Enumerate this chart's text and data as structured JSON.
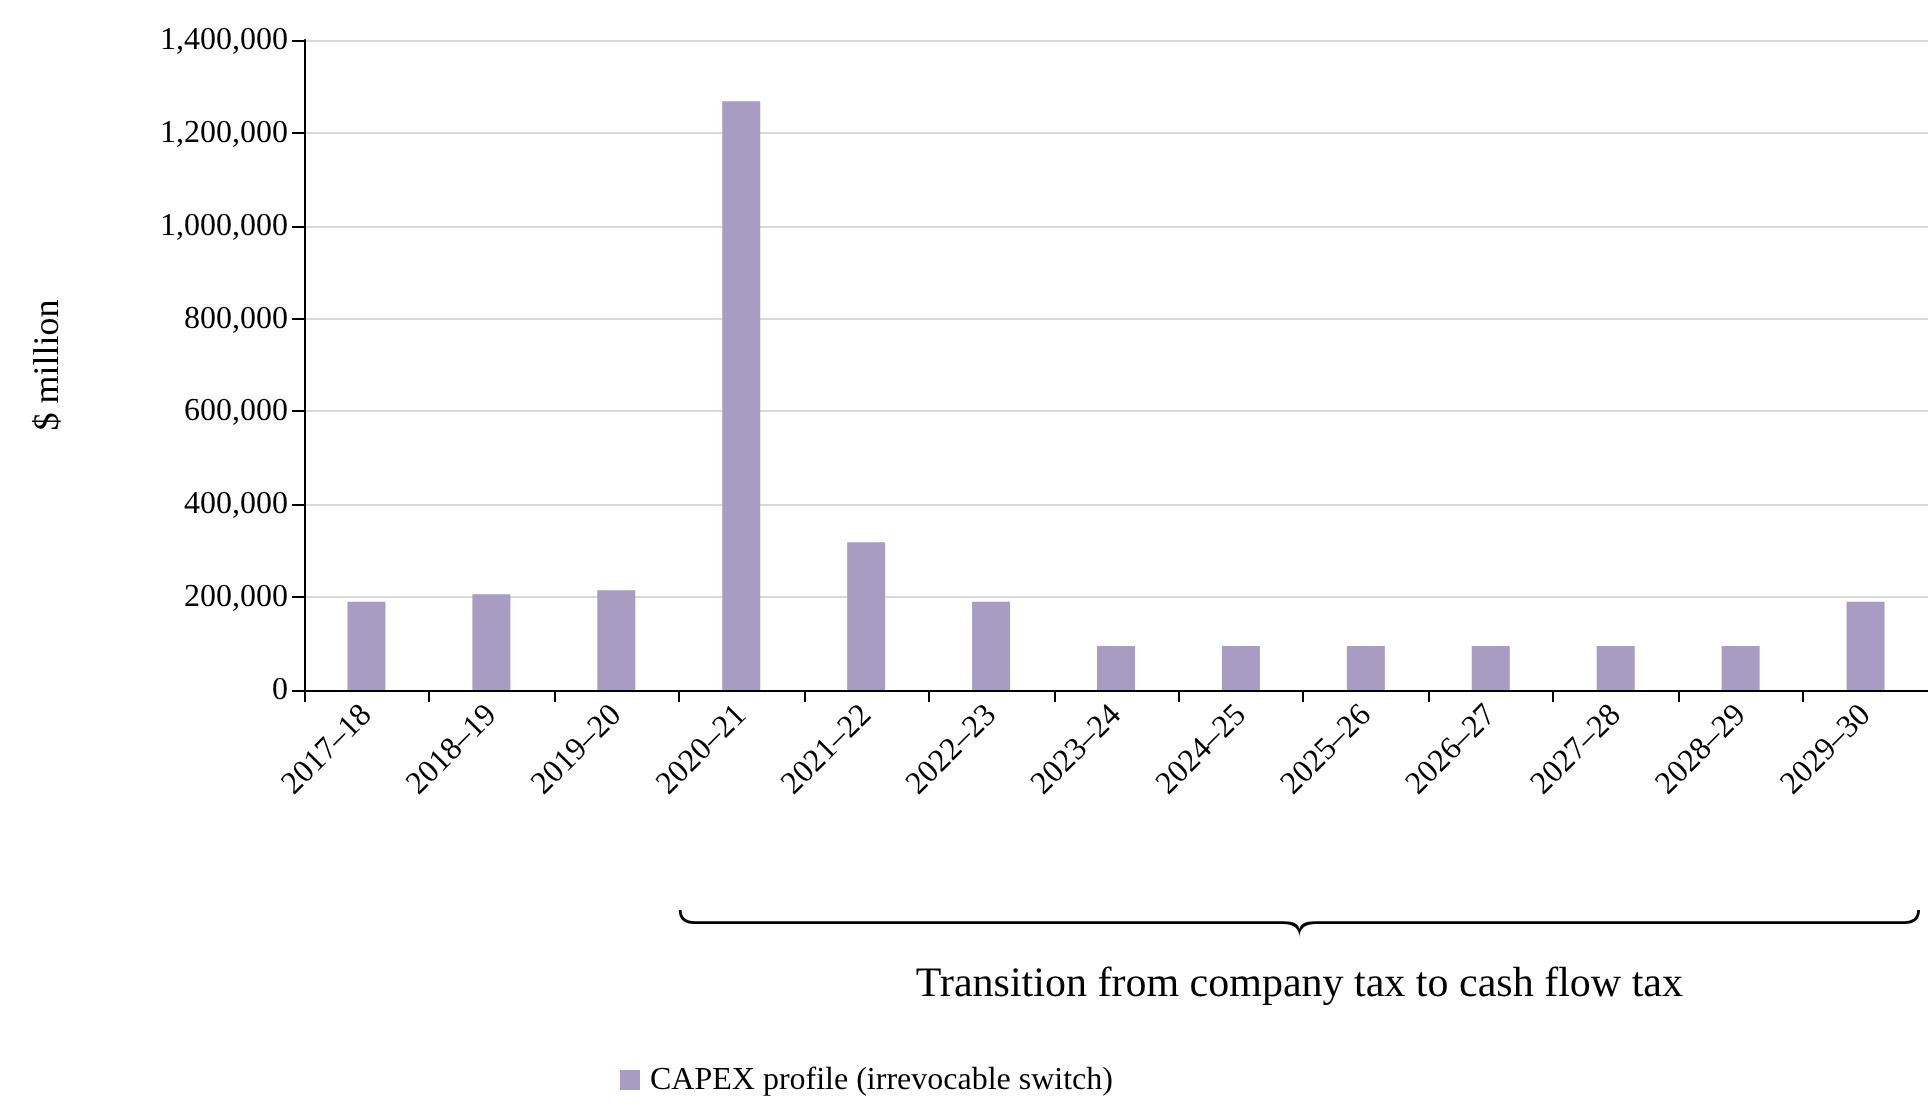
{
  "chart_data": {
    "type": "bar",
    "ylabel": "$ million",
    "categories": [
      "2017–18",
      "2018–19",
      "2019–20",
      "2020–21",
      "2021–22",
      "2022–23",
      "2023–24",
      "2024–25",
      "2025–26",
      "2026–27",
      "2027–28",
      "2028–29",
      "2029–30"
    ],
    "series": [
      {
        "name": "CAPEX profile (irrevocable switch)",
        "color": "#a99cc2",
        "values": [
          190000,
          206000,
          215000,
          1268000,
          318000,
          190000,
          95000,
          95000,
          95000,
          95000,
          95000,
          95000,
          190000
        ]
      }
    ],
    "ylim": [
      0,
      1400000
    ],
    "yticks": [
      0,
      {
        "value": 200000,
        "label": "200,000"
      },
      {
        "value": 400000,
        "label": "400,000"
      },
      {
        "value": 600000,
        "label": "600,000"
      },
      {
        "value": 800000,
        "label": "800,000"
      },
      {
        "value": 1000000,
        "label": "1,000,000"
      },
      {
        "value": 1200000,
        "label": "1,200,000"
      },
      {
        "value": 1400000,
        "label": "1,400,000"
      }
    ],
    "grid": "y",
    "legend": "bottom",
    "annotations": [
      "Transition from company tax to cash flow tax"
    ]
  }
}
